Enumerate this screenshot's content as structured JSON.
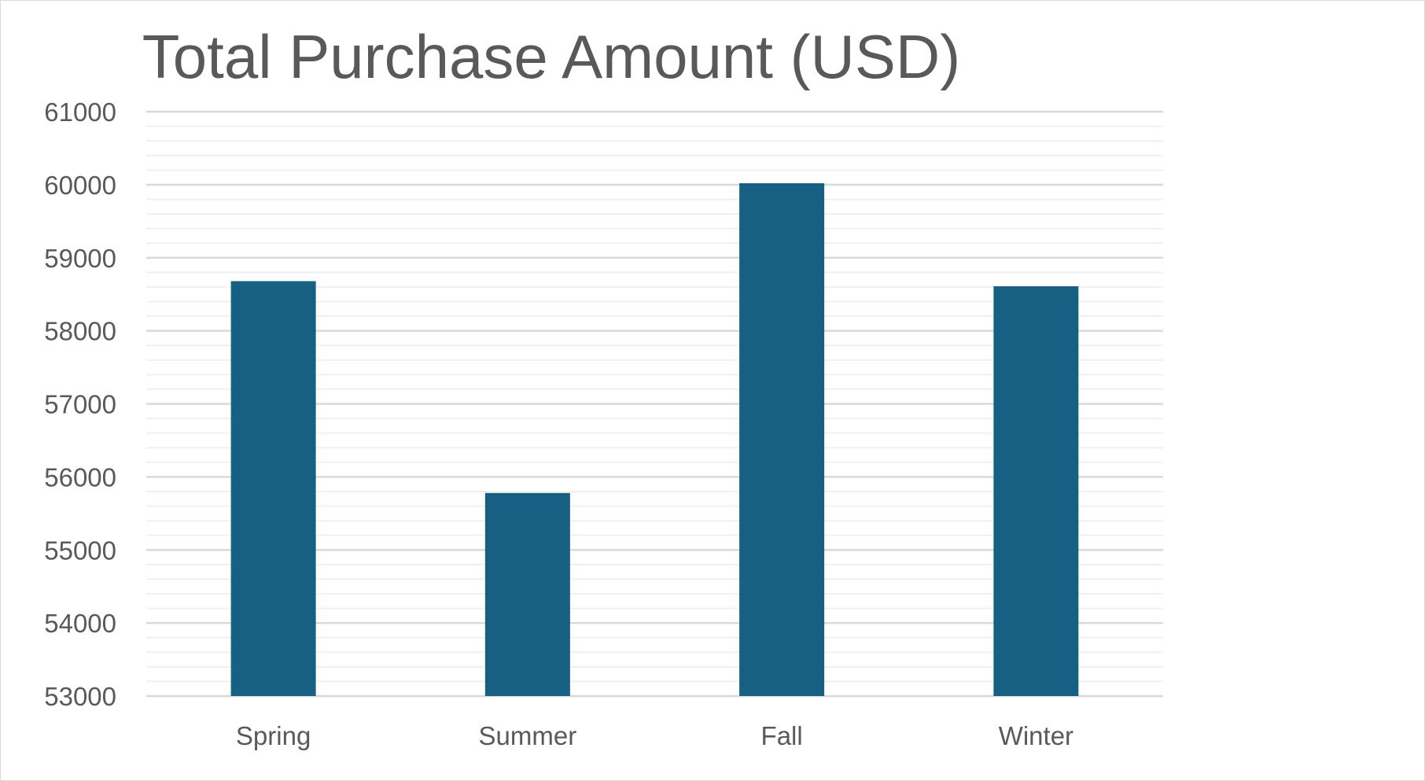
{
  "chart_data": {
    "type": "bar",
    "title": "Total Purchase Amount (USD)",
    "xlabel": "",
    "ylabel": "",
    "categories": [
      "Spring",
      "Summer",
      "Fall",
      "Winter"
    ],
    "series": [
      {
        "values": [
          58680,
          55780,
          60020,
          58610
        ]
      }
    ],
    "ylim": [
      53000,
      61000
    ],
    "yticks": [
      "53000",
      "54000",
      "55000",
      "56000",
      "57000",
      "58000",
      "59000",
      "60000",
      "61000"
    ],
    "major_step": 1000,
    "minor_step": 200,
    "grid": true,
    "legend": "none",
    "colors": {
      "bar": "#176083",
      "major_grid": "#d9d9d9",
      "minor_grid": "#f0f0f0",
      "text": "#595959",
      "border": "#d9d9d9"
    }
  }
}
